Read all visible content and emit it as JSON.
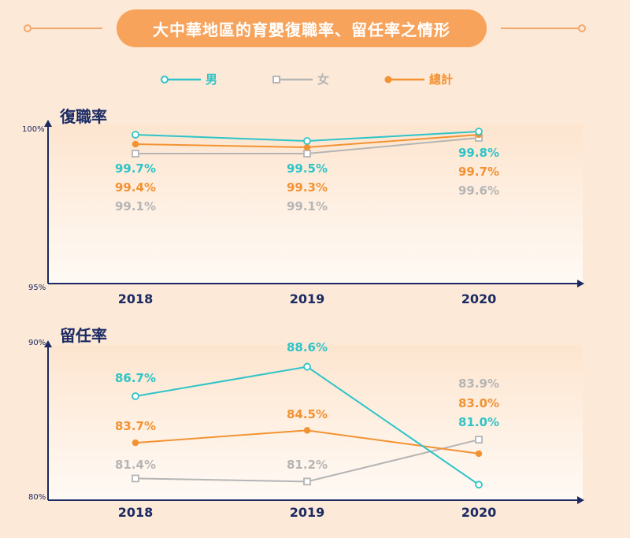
{
  "title": "大中華地區的育嬰復職率、留任率之情形",
  "colors": {
    "male": "#2ec4c8",
    "female": "#b5b5b5",
    "total": "#f39232",
    "axis": "#1b2a63",
    "title_bg": "#f7a35c"
  },
  "legend": [
    {
      "key": "male",
      "label": "男",
      "marker": "circle-open"
    },
    {
      "key": "female",
      "label": "女",
      "marker": "square-open"
    },
    {
      "key": "total",
      "label": "總計",
      "marker": "circle-filled"
    }
  ],
  "chart_data": [
    {
      "type": "line",
      "title": "復職率",
      "categories": [
        "2018",
        "2019",
        "2020"
      ],
      "ylim": [
        95,
        100
      ],
      "ytick_labels": [
        "100%",
        "95%"
      ],
      "series": [
        {
          "key": "male",
          "name": "男",
          "values": [
            99.7,
            99.5,
            99.8
          ],
          "labels": [
            "99.7%",
            "99.5%",
            "99.8%"
          ]
        },
        {
          "key": "total",
          "name": "總計",
          "values": [
            99.4,
            99.3,
            99.7
          ],
          "labels": [
            "99.4%",
            "99.3%",
            "99.7%"
          ]
        },
        {
          "key": "female",
          "name": "女",
          "values": [
            99.1,
            99.1,
            99.6
          ],
          "labels": [
            "99.1%",
            "99.1%",
            "99.6%"
          ]
        }
      ]
    },
    {
      "type": "line",
      "title": "留任率",
      "categories": [
        "2018",
        "2019",
        "2020"
      ],
      "ylim": [
        80,
        90
      ],
      "ytick_labels": [
        "90%",
        "80%"
      ],
      "series": [
        {
          "key": "male",
          "name": "男",
          "values": [
            86.7,
            88.6,
            81.0
          ],
          "labels": [
            "86.7%",
            "88.6%",
            "81.0%"
          ]
        },
        {
          "key": "total",
          "name": "總計",
          "values": [
            83.7,
            84.5,
            83.0
          ],
          "labels": [
            "83.7%",
            "84.5%",
            "83.0%"
          ]
        },
        {
          "key": "female",
          "name": "女",
          "values": [
            81.4,
            81.2,
            83.9
          ],
          "labels": [
            "81.4%",
            "81.2%",
            "83.9%"
          ]
        }
      ]
    }
  ]
}
